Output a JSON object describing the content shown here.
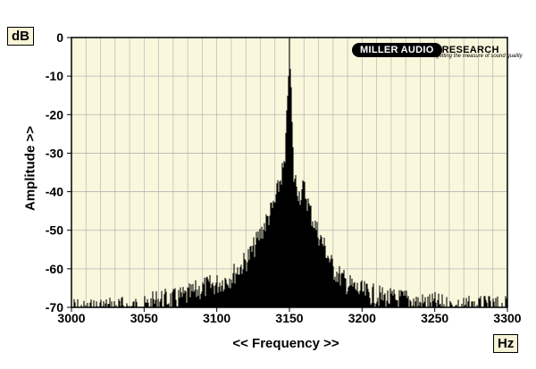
{
  "chart_data": {
    "type": "area",
    "x_unit": "Hz",
    "y_unit": "dB",
    "xlabel": "<< Frequency >>",
    "ylabel": "Amplitude >>",
    "xlim": [
      3000,
      3300
    ],
    "ylim": [
      -70,
      0
    ],
    "x_ticks": [
      3000,
      3050,
      3100,
      3150,
      3200,
      3250,
      3300
    ],
    "y_ticks": [
      0,
      -10,
      -20,
      -30,
      -40,
      -50,
      -60,
      -70
    ],
    "grid": true,
    "peak": {
      "frequency": 3150,
      "amplitude": 0
    },
    "series": [
      {
        "x": [
          3000,
          3010,
          3020,
          3030,
          3040,
          3050,
          3060,
          3070,
          3080,
          3090,
          3100,
          3110,
          3120,
          3125,
          3130,
          3135,
          3140,
          3143,
          3145,
          3147,
          3148,
          3149,
          3150,
          3151,
          3152,
          3153,
          3155,
          3157,
          3160,
          3165,
          3170,
          3175,
          3180,
          3190,
          3200,
          3210,
          3220,
          3230,
          3240,
          3250,
          3260,
          3270,
          3280,
          3290,
          3300
        ],
        "values": [
          -67,
          -68,
          -67,
          -67,
          -67,
          -67,
          -65,
          -65,
          -64,
          -62,
          -61,
          -59,
          -55,
          -52,
          -48,
          -44,
          -40,
          -35,
          -32,
          -30,
          -20,
          -8,
          0,
          -8,
          -22,
          -33,
          -35,
          -38,
          -36,
          -43,
          -48,
          -52,
          -57,
          -61,
          -63,
          -64,
          -65,
          -65,
          -66,
          -66,
          -67,
          -67,
          -67,
          -67,
          -67
        ]
      }
    ]
  },
  "labels": {
    "unit_y": "dB",
    "unit_x": "Hz",
    "xlabel": "<< Frequency >>",
    "ylabel": "Amplitude >>"
  },
  "logo": {
    "pill": "MILLER AUDIO",
    "rest": "RESEARCH",
    "tagline": "getting the measure of sound quality"
  },
  "colors": {
    "plot_bg": "#faf8dc",
    "grid": "#b5b5b5",
    "bars": "#000000",
    "frame": "#000000"
  }
}
